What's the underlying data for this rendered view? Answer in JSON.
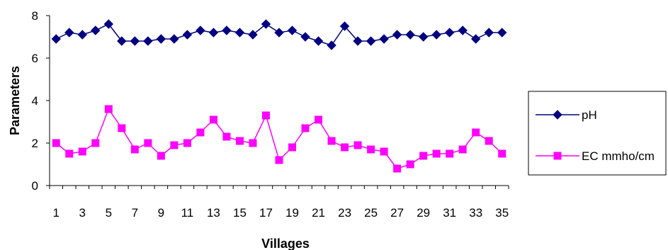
{
  "chart_data": {
    "type": "line",
    "title": "",
    "xlabel": "Villages",
    "ylabel": "Parameters",
    "x": [
      1,
      2,
      3,
      4,
      5,
      6,
      7,
      8,
      9,
      10,
      11,
      12,
      13,
      14,
      15,
      16,
      17,
      18,
      19,
      20,
      21,
      22,
      23,
      24,
      25,
      26,
      27,
      28,
      29,
      30,
      31,
      32,
      33,
      34,
      35
    ],
    "xticks": [
      "1",
      "3",
      "5",
      "7",
      "9",
      "11",
      "13",
      "15",
      "17",
      "19",
      "21",
      "23",
      "25",
      "27",
      "29",
      "31",
      "33",
      "35"
    ],
    "xtick_values": [
      1,
      3,
      5,
      7,
      9,
      11,
      13,
      15,
      17,
      19,
      21,
      23,
      25,
      27,
      29,
      31,
      33,
      35
    ],
    "yticks": [
      "0",
      "2",
      "4",
      "6",
      "8"
    ],
    "ylim": [
      0,
      8
    ],
    "grid": false,
    "legend_position": "right",
    "series": [
      {
        "name": "pH",
        "color": "#000080",
        "marker": "diamond",
        "values": [
          6.9,
          7.2,
          7.1,
          7.3,
          7.6,
          6.8,
          6.8,
          6.8,
          6.9,
          6.9,
          7.1,
          7.3,
          7.2,
          7.3,
          7.2,
          7.1,
          7.6,
          7.2,
          7.3,
          7.0,
          6.8,
          6.6,
          7.5,
          6.8,
          6.8,
          6.9,
          7.1,
          7.1,
          7.0,
          7.1,
          7.2,
          7.3,
          6.9,
          7.2,
          7.2
        ]
      },
      {
        "name": "EC mmho/cm",
        "color": "#ff00ff",
        "marker": "square",
        "values": [
          2.0,
          1.5,
          1.6,
          2.0,
          3.6,
          2.7,
          1.7,
          2.0,
          1.4,
          1.9,
          2.0,
          2.5,
          3.1,
          2.3,
          2.1,
          2.0,
          3.3,
          1.2,
          1.8,
          2.7,
          3.1,
          2.1,
          1.8,
          1.9,
          1.7,
          1.6,
          0.8,
          1.0,
          1.4,
          1.5,
          1.5,
          1.7,
          2.5,
          2.1,
          1.5
        ]
      }
    ]
  }
}
